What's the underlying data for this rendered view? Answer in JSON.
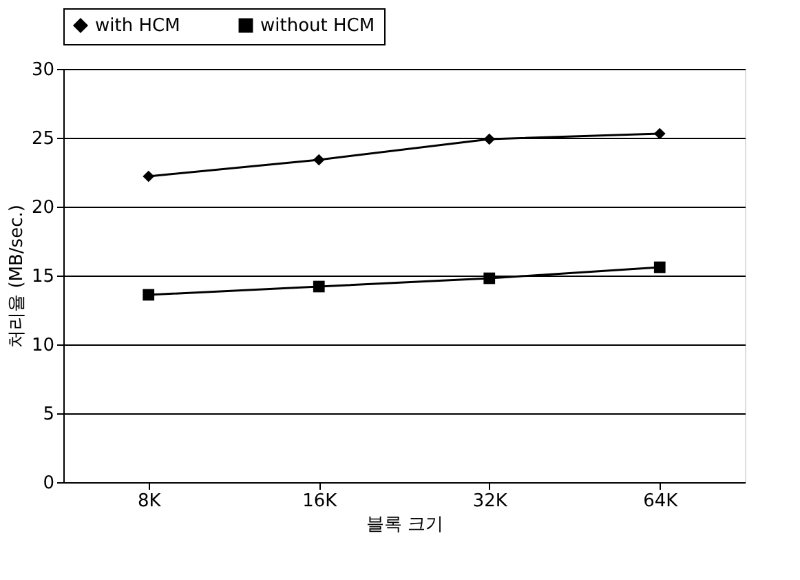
{
  "chart_data": {
    "type": "line",
    "xlabel": "블록 크기",
    "ylabel": "처리율 (MB/sec.)",
    "categories": [
      "8K",
      "16K",
      "32K",
      "64K"
    ],
    "series": [
      {
        "name": "with HCM",
        "color": "#000000",
        "marker": "diamond",
        "values": [
          22.2,
          23.4,
          24.9,
          25.3
        ]
      },
      {
        "name": "without HCM",
        "color": "#000000",
        "marker": "square",
        "values": [
          13.6,
          14.2,
          14.8,
          15.6
        ]
      }
    ],
    "ylim": [
      0,
      30
    ],
    "yticks": [
      0,
      5,
      10,
      15,
      20,
      25,
      30
    ],
    "grid": "y",
    "legend": "top",
    "line_style": "solid"
  }
}
